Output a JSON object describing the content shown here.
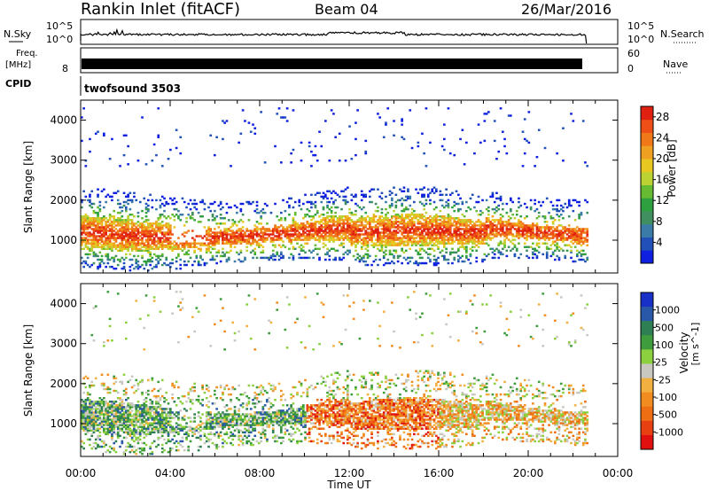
{
  "header": {
    "station": "Rankin Inlet (fitACF)",
    "beam": "Beam 04",
    "date": "26/Mar/2016"
  },
  "noise_panel": {
    "left_label": "N.Sky",
    "right_label": "N.Search",
    "ticks": [
      "10^5",
      "10^0"
    ]
  },
  "freq_panel": {
    "left_label_1": "Freq.",
    "left_label_2": "[MHz]",
    "left_tick": "8",
    "right_ticks": [
      "60",
      "0"
    ],
    "right_label": "Nave"
  },
  "cpid_panel": {
    "label": "CPID",
    "program": "twofsound 3503"
  },
  "time_axis": {
    "label": "Time UT",
    "ticks": [
      "00:00",
      "04:00",
      "08:00",
      "12:00",
      "16:00",
      "20:00",
      "00:00"
    ]
  },
  "chart_data": [
    {
      "type": "heatmap",
      "parameter": "Power",
      "ylabel": "Slant Range [km]",
      "yticks": [
        1000,
        2000,
        3000,
        4000
      ],
      "ylim": [
        180,
        4500
      ],
      "xlim_hours": [
        0,
        24
      ],
      "data_end_hour": 22.6,
      "colorbar": {
        "label": "Power [dB]",
        "ticks": [
          4,
          8,
          12,
          16,
          20,
          24,
          28
        ],
        "range": [
          0,
          30
        ],
        "colors": [
          "#1020e0",
          "#2050b8",
          "#3a7ba8",
          "#3f8f60",
          "#2fa040",
          "#66bb33",
          "#bcd233",
          "#e8c820",
          "#f0a020",
          "#f07818",
          "#ee4f16",
          "#e02010"
        ]
      }
    },
    {
      "type": "heatmap",
      "parameter": "Velocity",
      "ylabel": "Slant Range [km]",
      "yticks": [
        1000,
        2000,
        3000,
        4000
      ],
      "ylim": [
        180,
        4500
      ],
      "xlim_hours": [
        0,
        24
      ],
      "data_end_hour": 22.6,
      "colorbar": {
        "label": "Velocity",
        "unit": "[m s^-1]",
        "ticks": [
          "1000",
          "500",
          "100",
          "25",
          "-25",
          "-100",
          "-500",
          "-1000"
        ],
        "colors": [
          "#1830c8",
          "#2a58a8",
          "#2f7f55",
          "#3e9c3c",
          "#8cd040",
          "#c8c8c0",
          "#f2b040",
          "#f08c20",
          "#ee6e14",
          "#e84010",
          "#e01010"
        ]
      }
    }
  ]
}
